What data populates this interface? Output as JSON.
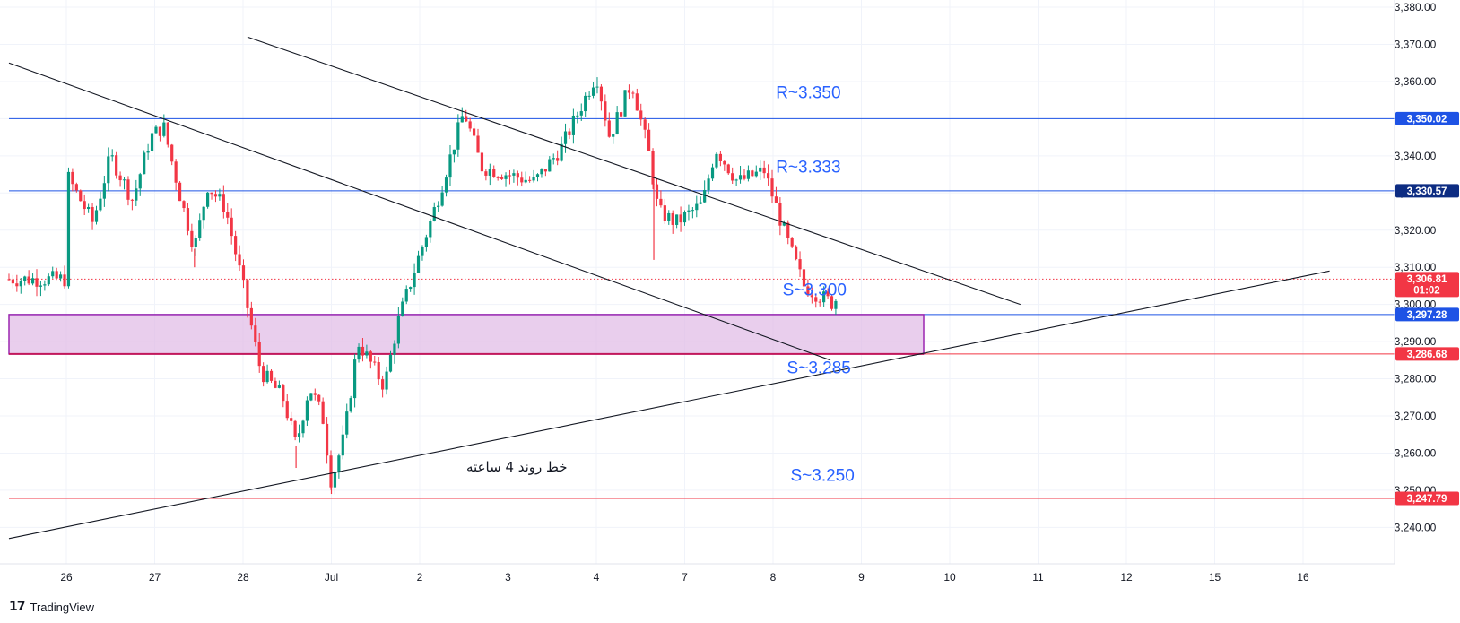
{
  "chart_data": {
    "type": "candlestick",
    "y_axis": {
      "range": [
        3235,
        3381
      ],
      "ticks": [
        3380,
        3370,
        3360,
        3350,
        3340,
        3330,
        3320,
        3310,
        3300,
        3290,
        3280,
        3270,
        3260,
        3250,
        3240
      ],
      "tick_labels": [
        "3,380.00",
        "3,370.00",
        "3,360.00",
        "3,350.00",
        "3,340.00",
        "3,330.00",
        "3,320.00",
        "3,310.00",
        "3,300.00",
        "3,290.00",
        "3,280.00",
        "3,270.00",
        "3,260.00",
        "3,250.00",
        "3,240.00"
      ],
      "position": "right"
    },
    "x_axis": {
      "tick_labels": [
        "26",
        "27",
        "28",
        "Jul",
        "2",
        "3",
        "4",
        "7",
        "8",
        "9",
        "10",
        "11",
        "12",
        "15",
        "16"
      ]
    },
    "price_tags": [
      {
        "value": 3350.02,
        "label": "3,350.02",
        "color": "#1e53e5"
      },
      {
        "value": 3330.57,
        "label": "3,330.57",
        "color": "#0d2c82"
      },
      {
        "value": 3306.81,
        "label": "3,306.81",
        "sublabel": "01:02",
        "color": "#f23645"
      },
      {
        "value": 3297.28,
        "label": "3,297.28",
        "color": "#1e53e5"
      },
      {
        "value": 3286.68,
        "label": "3,286.68",
        "color": "#f23645"
      },
      {
        "value": 3247.79,
        "label": "3,247.79",
        "color": "#f23645"
      }
    ],
    "horizontal_levels": [
      {
        "value": 3350.02,
        "color": "#1e53e5"
      },
      {
        "value": 3330.57,
        "color": "#1e53e5"
      },
      {
        "value": 3306.81,
        "color": "#f23645",
        "style": "dotted"
      },
      {
        "value": 3297.28,
        "color": "#1e53e5"
      },
      {
        "value": 3286.68,
        "color": "#f23645"
      },
      {
        "value": 3247.79,
        "color": "#f23645"
      }
    ],
    "zone": {
      "top": 3297.28,
      "bottom": 3286.68,
      "fill": "#e1bee7",
      "border": "#9c27b0"
    },
    "annotations": [
      {
        "text": "R~3.350",
        "value": 3355.5,
        "color": "#2962ff"
      },
      {
        "text": "R~3.333",
        "value": 3335.5,
        "color": "#2962ff"
      },
      {
        "text": "S~3.300",
        "value": 3302.5,
        "color": "#2962ff"
      },
      {
        "text": "S~3.285",
        "value": 3281.5,
        "color": "#2962ff"
      },
      {
        "text": "S~3.250",
        "value": 3252.5,
        "color": "#2962ff"
      }
    ],
    "note": "خط روند 4 ساعته",
    "candle_colors": {
      "up": "#089981",
      "down": "#f23645"
    },
    "key_prices": [
      {
        "x": 0.0,
        "y": 3335
      },
      {
        "x": 0.3,
        "y": 3322
      },
      {
        "x": 0.5,
        "y": 3340
      },
      {
        "x": 0.75,
        "y": 3328
      },
      {
        "x": 0.95,
        "y": 3345
      },
      {
        "x": 1.1,
        "y": 3348
      },
      {
        "x": 1.3,
        "y": 3328
      },
      {
        "x": 1.45,
        "y": 3315
      },
      {
        "x": 1.6,
        "y": 3332
      },
      {
        "x": 1.8,
        "y": 3326
      },
      {
        "x": 2.0,
        "y": 3305
      },
      {
        "x": 2.2,
        "y": 3282
      },
      {
        "x": 2.45,
        "y": 3275
      },
      {
        "x": 2.6,
        "y": 3262
      },
      {
        "x": 2.75,
        "y": 3278
      },
      {
        "x": 2.9,
        "y": 3270
      },
      {
        "x": 3.0,
        "y": 3252
      },
      {
        "x": 3.15,
        "y": 3265
      },
      {
        "x": 3.3,
        "y": 3290
      },
      {
        "x": 3.5,
        "y": 3282
      },
      {
        "x": 3.6,
        "y": 3278
      },
      {
        "x": 3.75,
        "y": 3295
      },
      {
        "x": 3.95,
        "y": 3310
      },
      {
        "x": 4.2,
        "y": 3328
      },
      {
        "x": 4.5,
        "y": 3352
      },
      {
        "x": 4.7,
        "y": 3337
      },
      {
        "x": 5.0,
        "y": 3335
      },
      {
        "x": 5.3,
        "y": 3333
      },
      {
        "x": 5.6,
        "y": 3342
      },
      {
        "x": 6.0,
        "y": 3362
      },
      {
        "x": 6.15,
        "y": 3345
      },
      {
        "x": 6.4,
        "y": 3360
      },
      {
        "x": 6.6,
        "y": 3340
      },
      {
        "x": 6.7,
        "y": 3325
      },
      {
        "x": 6.9,
        "y": 3322
      },
      {
        "x": 7.2,
        "y": 3327
      },
      {
        "x": 7.35,
        "y": 3342
      },
      {
        "x": 7.6,
        "y": 3333
      },
      {
        "x": 7.9,
        "y": 3336
      },
      {
        "x": 8.15,
        "y": 3318
      },
      {
        "x": 8.35,
        "y": 3305
      },
      {
        "x": 8.55,
        "y": 3302
      },
      {
        "x": 8.7,
        "y": 3300
      },
      {
        "x": 8.75,
        "y": 3306.81
      }
    ]
  },
  "branding": {
    "logo": "17",
    "name": "TradingView"
  }
}
